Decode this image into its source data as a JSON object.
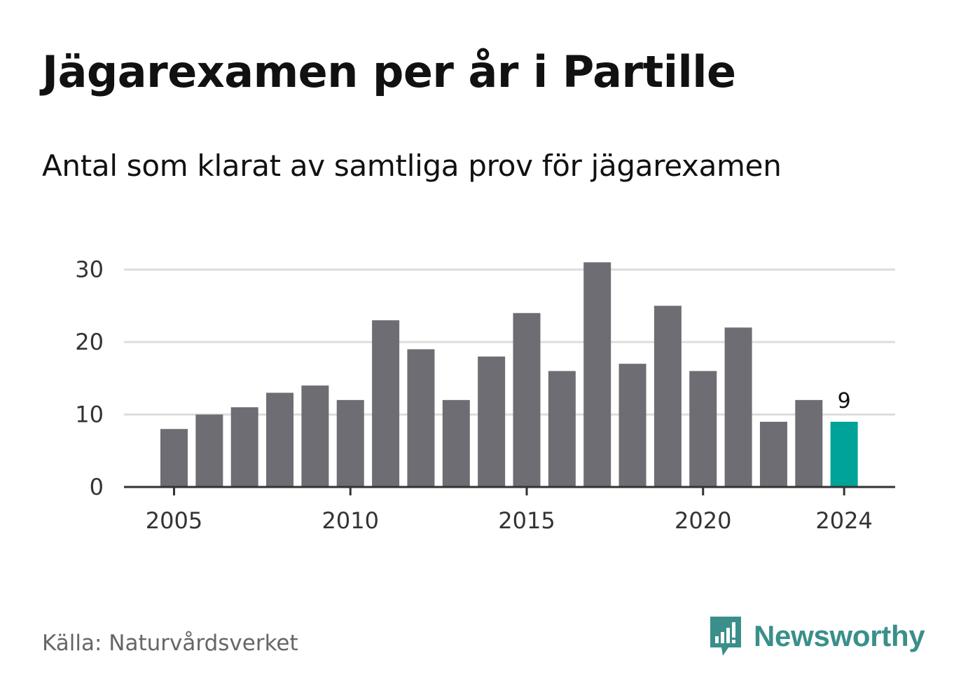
{
  "header": {
    "title": "Jägarexamen per år i Partille",
    "subtitle": "Antal som klarat av samtliga prov för jägarexamen"
  },
  "footer": {
    "source": "Källa: Naturvårdsverket",
    "brand": "Newsworthy"
  },
  "colors": {
    "bar": "#6e6d73",
    "highlight": "#00a398",
    "grid": "#dddddd",
    "axis": "#333333",
    "brand": "#3a8f8a"
  },
  "chart_data": {
    "type": "bar",
    "categories": [
      2005,
      2006,
      2007,
      2008,
      2009,
      2010,
      2011,
      2012,
      2013,
      2014,
      2015,
      2016,
      2017,
      2018,
      2019,
      2020,
      2021,
      2022,
      2023,
      2024
    ],
    "values": [
      8,
      10,
      11,
      13,
      14,
      12,
      23,
      19,
      12,
      18,
      24,
      16,
      31,
      17,
      25,
      16,
      22,
      9,
      12,
      9
    ],
    "highlight_index": 19,
    "xticks": [
      "2005",
      "2010",
      "2015",
      "2020",
      "2024"
    ],
    "yticks": [
      "0",
      "10",
      "20",
      "30"
    ],
    "ylim": [
      0,
      32
    ],
    "grid": true,
    "data_labels": [
      {
        "index": 19,
        "text": "9"
      }
    ]
  }
}
